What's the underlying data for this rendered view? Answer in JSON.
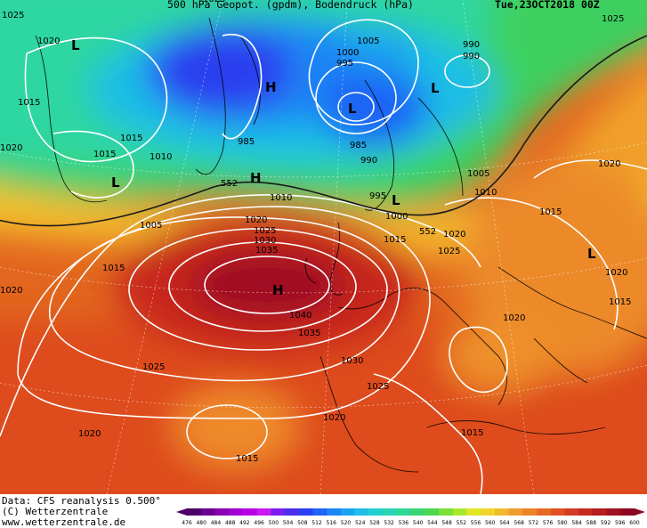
{
  "header": {
    "title": "500 hPa Geopot. (gpdm), Bodendruck (hPa)",
    "date": "Tue,23OCT2018 00Z"
  },
  "footer": {
    "source": "Data: CFS reanalysis 0.500°",
    "copyright": "(C) Wetterzentrale",
    "website": "www.wetterzentrale.de"
  },
  "colorbar": {
    "ticks": [
      476,
      480,
      484,
      488,
      492,
      496,
      500,
      504,
      508,
      512,
      516,
      520,
      524,
      528,
      532,
      536,
      540,
      544,
      548,
      552,
      556,
      560,
      564,
      568,
      572,
      576,
      580,
      584,
      588,
      592,
      596,
      600
    ],
    "colors": [
      "#4b0064",
      "#6a0090",
      "#8a00b4",
      "#a100d2",
      "#b800e8",
      "#c818f0",
      "#7a1ef0",
      "#4a2ee8",
      "#2a3ff0",
      "#1e63f5",
      "#1a86f5",
      "#1aa4f0",
      "#1ebee6",
      "#22d0d0",
      "#28d6b4",
      "#30d896",
      "#3ad674",
      "#4cd84e",
      "#78e038",
      "#a8e82c",
      "#e0e826",
      "#f2d42c",
      "#f2b82e",
      "#f09c2e",
      "#ec8228",
      "#e66a22",
      "#de5220",
      "#d23c1e",
      "#c42a1e",
      "#b41c1e",
      "#a01020",
      "#8c0822"
    ]
  },
  "pressure_labels": [
    "1025",
    "1020",
    "1015",
    "1020",
    "1015",
    "1010",
    "1005",
    "1015",
    "1020",
    "1025",
    "1020",
    "1025",
    "1030",
    "1035",
    "1040",
    "1035",
    "1030",
    "1025",
    "1020",
    "1015",
    "1020",
    "1025",
    "1015",
    "1000",
    "995",
    "990",
    "985",
    "990",
    "995",
    "1000",
    "1005",
    "990",
    "985",
    "1010",
    "1015",
    "1005",
    "1020",
    "1025",
    "1020",
    "1015",
    "1020",
    "1015",
    "1025",
    "1020",
    "1015",
    "1010",
    "1020",
    "1025",
    "1020",
    "1015"
  ],
  "geopotential_labels": [
    "552",
    "552"
  ],
  "pressure_centers": [
    "L",
    "L",
    "H",
    "H",
    "H",
    "L",
    "L",
    "L",
    "L",
    "H"
  ]
}
